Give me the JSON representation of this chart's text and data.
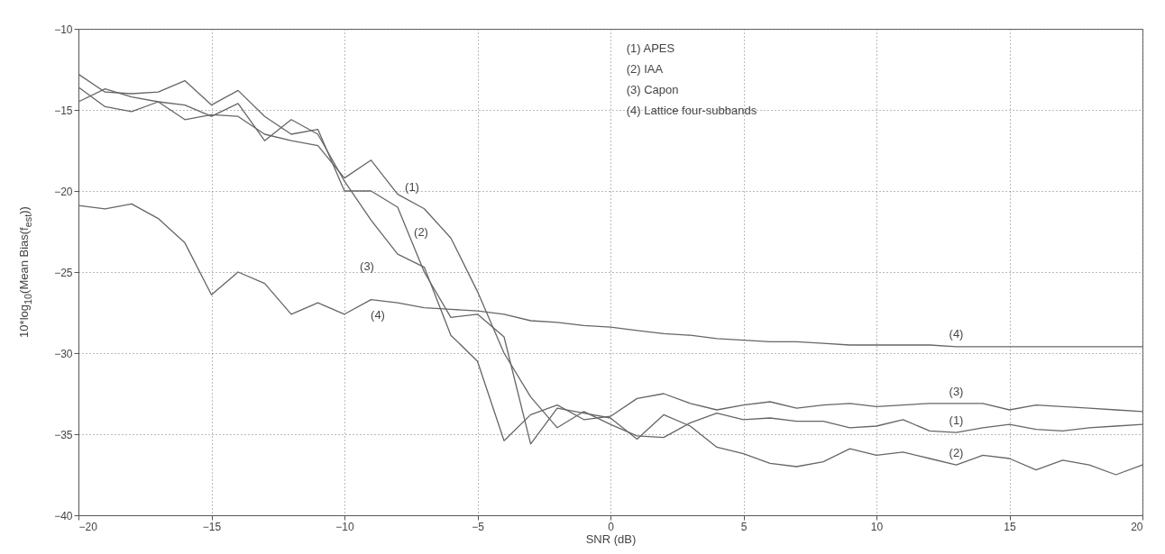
{
  "chart_data": {
    "type": "line",
    "xlabel": "SNR (dB)",
    "ylabel": "10*log$_{10}$(Mean Bias(f$_{est}$))",
    "x": [
      -20,
      -19,
      -18,
      -17,
      -16,
      -15,
      -14,
      -13,
      -12,
      -11,
      -10,
      -9,
      -8,
      -7,
      -6,
      -5,
      -4,
      -3,
      -2,
      -1,
      0,
      1,
      2,
      3,
      4,
      5,
      6,
      7,
      8,
      9,
      10,
      11,
      12,
      13,
      14,
      15,
      16,
      17,
      18,
      19,
      20
    ],
    "series": [
      {
        "name": "(1)",
        "color": "#666666",
        "values": [
          -14.5,
          -13.7,
          -14.2,
          -14.5,
          -15.6,
          -15.3,
          -15.4,
          -16.5,
          -16.9,
          -17.2,
          -19.2,
          -18.1,
          -20.2,
          -21.1,
          -22.9,
          -26.2,
          -30,
          -32.7,
          -34.6,
          -33.6,
          -34.4,
          -35.1,
          -35.2,
          -34.3,
          -33.7,
          -34.1,
          -34,
          -34.2,
          -34.2,
          -34.6,
          -34.5,
          -34.1,
          -34.8,
          -34.9,
          -34.6,
          -34.4,
          -34.7,
          -34.8,
          -34.6,
          -34.5,
          -34.4
        ]
      },
      {
        "name": "(2)",
        "color": "#666666",
        "values": [
          -12.8,
          -13.9,
          -14,
          -13.9,
          -13.2,
          -14.7,
          -13.8,
          -15.4,
          -16.5,
          -16.2,
          -20,
          -20,
          -21,
          -25,
          -27.8,
          -27.6,
          -29,
          -35.6,
          -33.4,
          -33.7,
          -34,
          -35.3,
          -33.8,
          -34.5,
          -35.8,
          -36.2,
          -36.8,
          -37,
          -36.7,
          -35.9,
          -36.3,
          -36.1,
          -36.5,
          -36.9,
          -36.3,
          -36.5,
          -37.2,
          -36.6,
          -36.9,
          -37.5,
          -36.9
        ]
      },
      {
        "name": "(3)",
        "color": "#666666",
        "values": [
          -13.6,
          -14.8,
          -15.1,
          -14.5,
          -14.7,
          -15.4,
          -14.6,
          -16.9,
          -15.6,
          -16.5,
          -19.4,
          -21.8,
          -23.9,
          -24.7,
          -28.9,
          -30.5,
          -35.4,
          -33.8,
          -33.2,
          -34.1,
          -33.9,
          -32.8,
          -32.5,
          -33.1,
          -33.5,
          -33.2,
          -33,
          -33.4,
          -33.2,
          -33.1,
          -33.3,
          -33.2,
          -33.1,
          -33.1,
          -33.1,
          -33.5,
          -33.2,
          -33.3,
          -33.4,
          -33.5,
          -33.6
        ]
      },
      {
        "name": "(4)",
        "color": "#666666",
        "values": [
          -20.9,
          -21.1,
          -20.8,
          -21.7,
          -23.2,
          -26.4,
          -25,
          -25.7,
          -27.6,
          -26.9,
          -27.6,
          -26.7,
          -26.9,
          -27.2,
          -27.3,
          -27.4,
          -27.6,
          -28,
          -28.1,
          -28.3,
          -28.4,
          -28.6,
          -28.8,
          -28.9,
          -29.1,
          -29.2,
          -29.3,
          -29.3,
          -29.4,
          -29.5,
          -29.5,
          -29.5,
          -29.5,
          -29.6,
          -29.6,
          -29.6,
          -29.6,
          -29.6,
          -29.6,
          -29.6,
          -29.6
        ]
      }
    ],
    "xlim": [
      -20,
      20
    ],
    "ylim": [
      -40,
      -10
    ],
    "xticks": [
      -20,
      -15,
      -10,
      -5,
      0,
      5,
      10,
      15,
      20
    ],
    "yticks": [
      -40,
      -35,
      -30,
      -25,
      -20,
      -15,
      -10
    ],
    "grid": true,
    "annotations": [
      "(1) APES",
      "(2) IAA",
      "(3) Capon",
      "(4) Lattice four-subbands"
    ]
  }
}
